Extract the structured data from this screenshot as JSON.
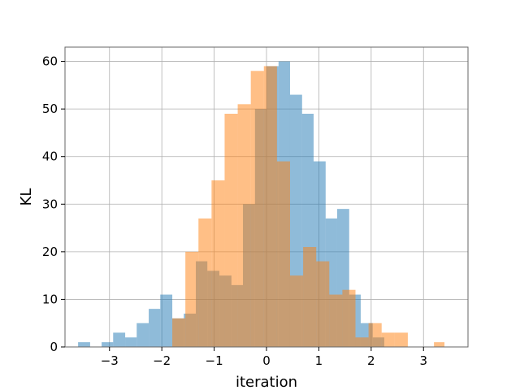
{
  "chart_data": {
    "type": "bar",
    "title": "",
    "xlabel": "iteration",
    "ylabel": "KL",
    "xlim": [
      -3.85,
      3.85
    ],
    "ylim": [
      0,
      63
    ],
    "xticks": [
      -3,
      -2,
      -1,
      0,
      1,
      2,
      3
    ],
    "xtick_labels": [
      "−3",
      "−2",
      "−1",
      "0",
      "1",
      "2",
      "3"
    ],
    "yticks": [
      0,
      10,
      20,
      30,
      40,
      50,
      60
    ],
    "ytick_labels": [
      "0",
      "10",
      "20",
      "30",
      "40",
      "50",
      "60"
    ],
    "grid": true,
    "series": [
      {
        "color": "#1f77b4",
        "opacity": 0.5,
        "bins": [
          [
            -3.6,
            -3.37,
            1
          ],
          [
            -3.37,
            -3.15,
            0
          ],
          [
            -3.15,
            -2.93,
            1
          ],
          [
            -2.93,
            -2.7,
            3
          ],
          [
            -2.7,
            -2.48,
            2
          ],
          [
            -2.48,
            -2.25,
            5
          ],
          [
            -2.25,
            -2.03,
            8
          ],
          [
            -2.03,
            -1.8,
            11
          ],
          [
            -1.8,
            -1.58,
            6
          ],
          [
            -1.58,
            -1.35,
            7
          ],
          [
            -1.35,
            -1.13,
            18
          ],
          [
            -1.13,
            -0.9,
            16
          ],
          [
            -0.9,
            -0.67,
            15
          ],
          [
            -0.67,
            -0.45,
            13
          ],
          [
            -0.45,
            -0.22,
            30
          ],
          [
            -0.22,
            0.0,
            50
          ],
          [
            0.0,
            0.23,
            59
          ],
          [
            0.23,
            0.45,
            60
          ],
          [
            0.45,
            0.68,
            53
          ],
          [
            0.68,
            0.9,
            49
          ],
          [
            0.9,
            1.13,
            39
          ],
          [
            1.13,
            1.35,
            27
          ],
          [
            1.35,
            1.58,
            29
          ],
          [
            1.58,
            1.8,
            11
          ],
          [
            1.8,
            2.03,
            5
          ],
          [
            2.03,
            2.25,
            2
          ]
        ]
      },
      {
        "color": "#ff7f0e",
        "opacity": 0.5,
        "bins": [
          [
            -1.8,
            -1.55,
            6
          ],
          [
            -1.55,
            -1.3,
            20
          ],
          [
            -1.3,
            -1.05,
            27
          ],
          [
            -1.05,
            -0.8,
            35
          ],
          [
            -0.8,
            -0.55,
            49
          ],
          [
            -0.55,
            -0.3,
            51
          ],
          [
            -0.3,
            -0.05,
            58
          ],
          [
            -0.05,
            0.2,
            59
          ],
          [
            0.2,
            0.45,
            39
          ],
          [
            0.45,
            0.7,
            15
          ],
          [
            0.7,
            0.95,
            21
          ],
          [
            0.95,
            1.2,
            18
          ],
          [
            1.2,
            1.45,
            11
          ],
          [
            1.45,
            1.7,
            12
          ],
          [
            1.7,
            1.95,
            2
          ],
          [
            1.95,
            2.2,
            5
          ],
          [
            2.2,
            2.45,
            3
          ],
          [
            2.45,
            2.7,
            3
          ],
          [
            3.2,
            3.4,
            1
          ]
        ]
      }
    ]
  }
}
